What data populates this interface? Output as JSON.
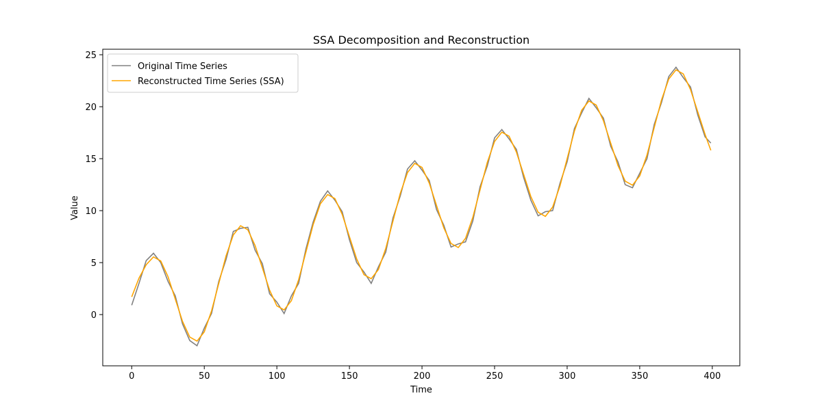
{
  "chart_data": {
    "type": "line",
    "title": "SSA Decomposition and Reconstruction",
    "x_label": "Time",
    "y_label": "Value",
    "x": [
      0,
      5,
      10,
      15,
      20,
      25,
      30,
      35,
      40,
      45,
      50,
      55,
      60,
      65,
      70,
      75,
      80,
      85,
      90,
      95,
      100,
      105,
      110,
      115,
      120,
      125,
      130,
      135,
      140,
      145,
      150,
      155,
      160,
      165,
      170,
      175,
      180,
      185,
      190,
      195,
      200,
      205,
      210,
      215,
      220,
      225,
      230,
      235,
      240,
      245,
      250,
      255,
      260,
      265,
      270,
      275,
      280,
      285,
      290,
      295,
      300,
      305,
      310,
      315,
      320,
      325,
      330,
      335,
      340,
      345,
      350,
      355,
      360,
      365,
      370,
      375,
      380,
      385,
      390,
      395,
      399
    ],
    "series": [
      {
        "name": "Original Time Series",
        "color": "#808080",
        "values": [
          0.9,
          3.0,
          5.2,
          5.9,
          5.0,
          3.2,
          1.8,
          -0.9,
          -2.5,
          -3.0,
          -1.3,
          0.1,
          3.2,
          5.3,
          8.0,
          8.3,
          8.4,
          6.2,
          4.9,
          2.0,
          1.2,
          0.1,
          1.8,
          3.0,
          6.3,
          8.9,
          10.9,
          11.9,
          11.0,
          9.9,
          7.2,
          5.0,
          4.1,
          3.0,
          4.6,
          6.0,
          9.3,
          11.4,
          14.0,
          14.8,
          13.9,
          12.9,
          10.1,
          8.6,
          6.5,
          6.8,
          7.0,
          9.0,
          12.3,
          14.3,
          17.0,
          17.8,
          16.9,
          15.9,
          13.2,
          11.0,
          9.5,
          9.9,
          10.0,
          12.6,
          14.7,
          17.9,
          19.4,
          20.8,
          19.9,
          18.9,
          16.2,
          14.7,
          12.5,
          12.2,
          13.6,
          15.0,
          18.3,
          20.4,
          22.9,
          23.8,
          22.8,
          21.9,
          19.2,
          17.1,
          16.5
        ]
      },
      {
        "name": "Reconstructed Time Series (SSA)",
        "color": "#ffa500",
        "values": [
          1.7,
          3.5,
          4.8,
          5.55,
          5.16,
          3.65,
          1.5,
          -0.65,
          -2.16,
          -2.55,
          -1.66,
          0.35,
          3,
          5.65,
          7.66,
          8.55,
          8.16,
          6.65,
          4.5,
          2.35,
          0.84,
          0.45,
          1.34,
          3.35,
          6,
          8.65,
          10.66,
          11.55,
          11.16,
          9.65,
          7.5,
          5.35,
          3.84,
          3.45,
          4.34,
          6.35,
          9,
          11.65,
          13.66,
          14.55,
          14.16,
          12.65,
          10.5,
          8.35,
          6.84,
          6.45,
          7.34,
          9.35,
          12,
          14.65,
          16.66,
          17.55,
          17.16,
          15.65,
          13.5,
          11.35,
          9.84,
          9.45,
          10.34,
          12.35,
          15,
          17.65,
          19.66,
          20.55,
          20.16,
          18.65,
          16.5,
          14.35,
          12.84,
          12.45,
          13.34,
          15.35,
          18,
          20.65,
          22.66,
          23.55,
          23.16,
          21.65,
          19.5,
          17.35,
          15.8
        ]
      }
    ],
    "xlim": [
      -19.95,
      418.95
    ],
    "ylim": [
      -4.93,
      25.53
    ],
    "xticks": [
      0,
      50,
      100,
      150,
      200,
      250,
      300,
      350,
      400
    ],
    "yticks": [
      0,
      5,
      10,
      15,
      20,
      25
    ],
    "grid": false,
    "legend": "upper left"
  }
}
